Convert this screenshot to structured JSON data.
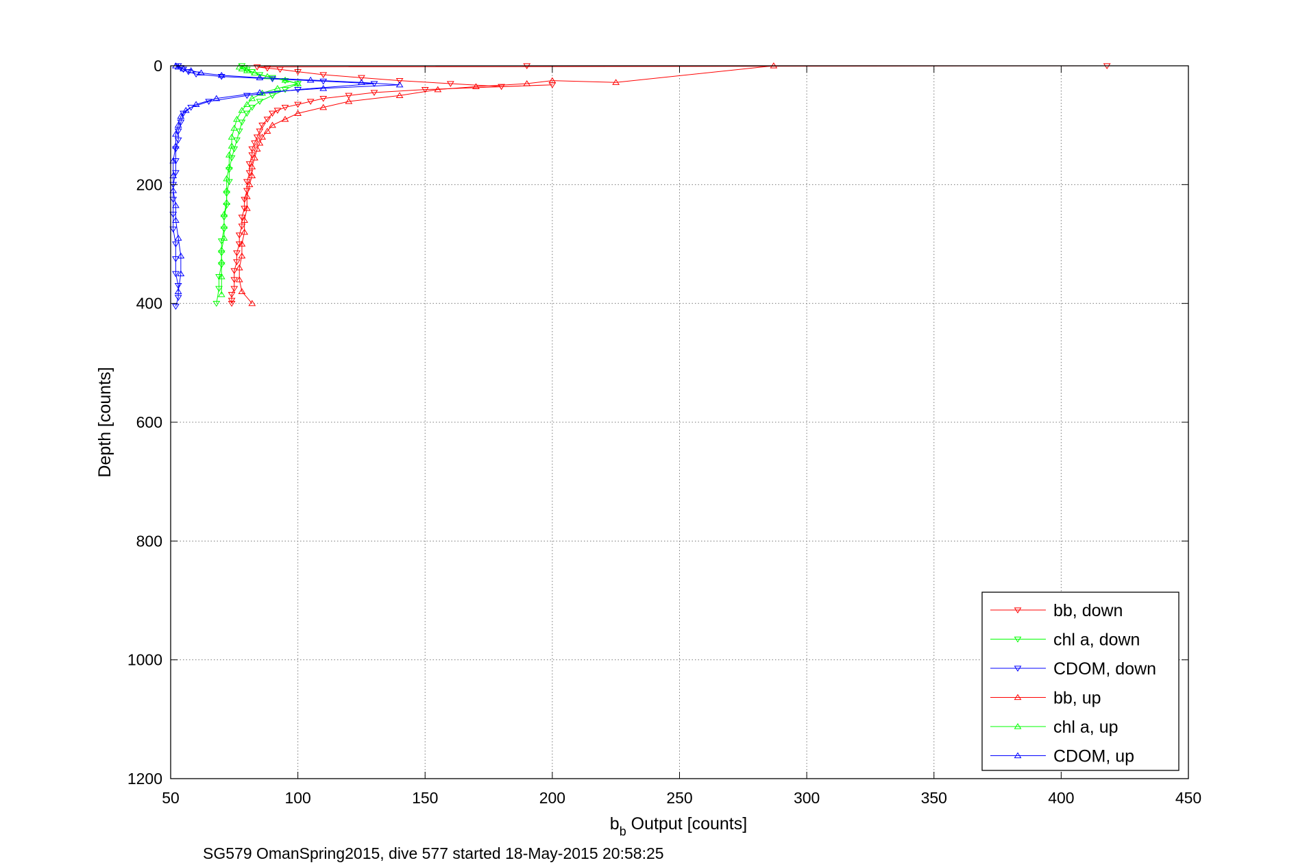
{
  "chart_data": {
    "type": "scatter",
    "xlabel_main": "b",
    "xlabel_sub": "b",
    "xlabel_rest": " Output [counts]",
    "ylabel": "Depth [counts]",
    "caption": "SG579 OmanSpring2015, dive 577 started 18-May-2015 20:58:25",
    "xlim": [
      50,
      450
    ],
    "ylim": [
      0,
      1200
    ],
    "y_reversed": true,
    "grid": true,
    "xticks": [
      50,
      100,
      150,
      200,
      250,
      300,
      350,
      400,
      450
    ],
    "yticks": [
      0,
      200,
      400,
      600,
      800,
      1000,
      1200
    ],
    "legend_position": "bottom-right",
    "series": [
      {
        "name": "bb, down",
        "color": "#ff0000",
        "marker": "triangle-down",
        "x": [
          190,
          418,
          84,
          88,
          93,
          100,
          110,
          125,
          140,
          160,
          180,
          200,
          150,
          130,
          120,
          110,
          105,
          100,
          95,
          92,
          90,
          88,
          86,
          85,
          84,
          83,
          82,
          82,
          81,
          81,
          80,
          80,
          79,
          79,
          78,
          78,
          77,
          77,
          76,
          76,
          75,
          75,
          75,
          74,
          74,
          74
        ],
        "y": [
          0,
          0,
          2,
          4,
          6,
          10,
          15,
          20,
          25,
          30,
          35,
          32,
          40,
          45,
          50,
          55,
          60,
          65,
          70,
          75,
          80,
          90,
          100,
          110,
          120,
          130,
          140,
          150,
          165,
          180,
          195,
          210,
          225,
          240,
          255,
          270,
          285,
          300,
          315,
          330,
          345,
          360,
          375,
          385,
          395,
          400
        ]
      },
      {
        "name": "chl a, down",
        "color": "#00ff00",
        "marker": "triangle-down",
        "x": [
          78,
          79,
          80,
          82,
          85,
          90,
          95,
          100,
          95,
          90,
          85,
          82,
          80,
          78,
          77,
          76,
          75,
          74,
          73,
          73,
          72,
          72,
          71,
          71,
          70,
          70,
          70,
          69,
          69,
          68
        ],
        "y": [
          0,
          3,
          6,
          10,
          15,
          20,
          25,
          30,
          40,
          50,
          60,
          70,
          80,
          95,
          110,
          125,
          140,
          155,
          175,
          195,
          215,
          235,
          255,
          275,
          295,
          315,
          335,
          355,
          375,
          400
        ]
      },
      {
        "name": "CDOM, down",
        "color": "#0000ff",
        "marker": "triangle-down",
        "x": [
          53,
          54,
          55,
          57,
          60,
          70,
          90,
          110,
          130,
          100,
          80,
          65,
          58,
          55,
          54,
          53,
          53,
          52,
          52,
          52,
          51,
          51,
          51,
          51,
          52,
          52,
          52,
          53,
          53,
          52
        ],
        "y": [
          0,
          3,
          6,
          10,
          14,
          18,
          22,
          26,
          30,
          40,
          50,
          60,
          70,
          80,
          95,
          110,
          125,
          140,
          160,
          180,
          200,
          225,
          250,
          275,
          300,
          325,
          350,
          370,
          390,
          405
        ]
      },
      {
        "name": "bb, up",
        "color": "#ff0000",
        "marker": "triangle-up",
        "x": [
          287,
          225,
          200,
          190,
          170,
          155,
          140,
          120,
          110,
          100,
          95,
          90,
          88,
          86,
          85,
          84,
          83,
          82,
          82,
          81,
          80,
          80,
          79,
          79,
          78,
          78,
          77,
          77,
          78,
          82
        ],
        "y": [
          0,
          28,
          25,
          30,
          35,
          40,
          50,
          60,
          70,
          80,
          90,
          100,
          110,
          120,
          130,
          140,
          155,
          170,
          185,
          200,
          220,
          240,
          260,
          280,
          300,
          320,
          340,
          360,
          380,
          400
        ]
      },
      {
        "name": "chl a, up",
        "color": "#00ff00",
        "marker": "triangle-up",
        "x": [
          77,
          78,
          80,
          83,
          88,
          95,
          100,
          92,
          86,
          82,
          80,
          78,
          76,
          75,
          74,
          74,
          73,
          73,
          72,
          72,
          72,
          71,
          71,
          71,
          70,
          70,
          70,
          70
        ],
        "y": [
          2,
          5,
          8,
          12,
          18,
          24,
          30,
          38,
          46,
          55,
          65,
          75,
          90,
          105,
          120,
          135,
          150,
          170,
          190,
          210,
          230,
          250,
          270,
          290,
          310,
          330,
          355,
          385
        ]
      },
      {
        "name": "CDOM, up",
        "color": "#0000ff",
        "marker": "triangle-up",
        "x": [
          52,
          53,
          55,
          58,
          62,
          70,
          85,
          105,
          125,
          140,
          110,
          85,
          68,
          60,
          56,
          54,
          53,
          52,
          52,
          51,
          51,
          51,
          52,
          52,
          53,
          54,
          54,
          53
        ],
        "y": [
          0,
          2,
          5,
          8,
          12,
          16,
          20,
          24,
          28,
          32,
          38,
          45,
          55,
          65,
          75,
          85,
          100,
          115,
          135,
          160,
          185,
          210,
          235,
          260,
          290,
          320,
          350,
          380
        ]
      }
    ]
  }
}
